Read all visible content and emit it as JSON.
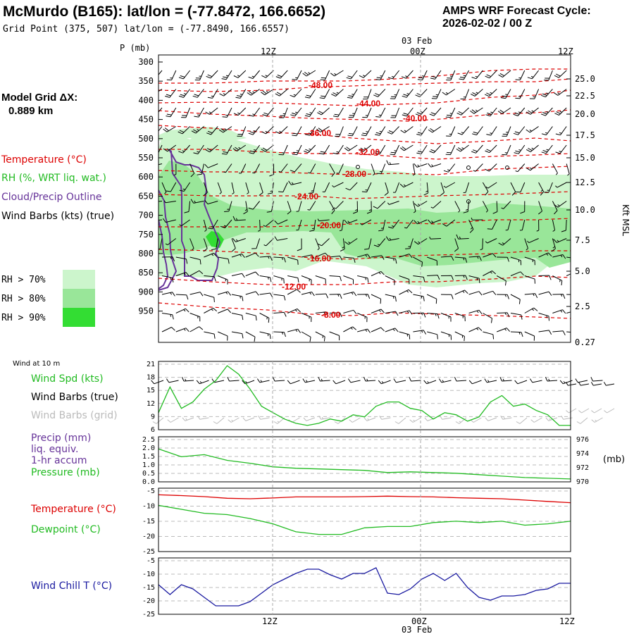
{
  "header": {
    "title": "McMurdo (B165):  lat/lon = (-77.8472, 166.6652)",
    "subtitle": "Grid Point (375, 507) lat/lon = (-77.8490, 166.6557)",
    "cycle_label": "AMPS WRF Forecast Cycle:",
    "cycle_value": "2026-02-02 / 00  Z"
  },
  "model_grid": {
    "label": "Model Grid ΔX:",
    "value": "0.889 km"
  },
  "colors": {
    "temperature": "#dd0000",
    "rh": "#22bb22",
    "cloud": "#663399",
    "wind": "#000000",
    "wind_grid": "#bbbbbb",
    "pressure": "#22bb22",
    "dewpoint": "#22bb22",
    "windchill": "#1a1aa0",
    "rh70": "#ccf5cc",
    "rh80": "#99e699",
    "rh90": "#33dd33"
  },
  "legend_main": {
    "temperature": "Temperature (°C)",
    "rh": "RH (%, WRT liq. wat.)",
    "cloud": "Cloud/Precip Outline",
    "wind": "Wind Barbs (kts) (true)"
  },
  "rh_legend": [
    "RH > 70%",
    "RH > 80%",
    "RH > 90%"
  ],
  "chart_data": [
    {
      "type": "area",
      "name": "cross-section",
      "ylabel": "P (mb)",
      "ylabel_right": "Kft MSL",
      "y_ticks": [
        "300",
        "350",
        "400",
        "450",
        "500",
        "550",
        "600",
        "650",
        "700",
        "750",
        "800",
        "850",
        "900",
        "950"
      ],
      "y_right_ticks": [
        "25.0",
        "22.5",
        "20.0",
        "17.5",
        "15.0",
        "12.5",
        "10.0",
        "7.5",
        "5.0",
        "2.5",
        "0.27"
      ],
      "x_ticks_top": [
        "12Z",
        "00Z",
        "12Z"
      ],
      "date_label_top": "03 Feb",
      "isotherm_labels": [
        "-48.00",
        "-44.00",
        "-40.00",
        "-36.00",
        "-32.00",
        "-28.00",
        "-24.00",
        "-20.00",
        "-16.00",
        "-12.00",
        "-8.00"
      ],
      "grid": true
    },
    {
      "type": "line",
      "name": "wind",
      "section_label": "Wind at 10 m",
      "labels": [
        "Wind Spd (kts)",
        "Wind Barbs (true)",
        "Wind Barbs (grid)"
      ],
      "y_ticks": [
        "21",
        "18",
        "15",
        "12",
        "9",
        "6"
      ],
      "ylim": [
        5,
        21
      ],
      "x": [
        0,
        1,
        2,
        3,
        4,
        5,
        6,
        7,
        8,
        9,
        10,
        11,
        12,
        13,
        14,
        15,
        16,
        17,
        18,
        19,
        20,
        21,
        22,
        23,
        24,
        25,
        26,
        27,
        28,
        29,
        30,
        31,
        32,
        33,
        34,
        35,
        36
      ],
      "series": [
        {
          "name": "Wind Spd (kts)",
          "values": [
            9,
            15,
            10,
            11.5,
            14.5,
            16.5,
            20,
            18,
            14.5,
            10.5,
            9,
            7.5,
            6.5,
            6,
            6.5,
            7.5,
            7,
            8.5,
            8,
            10.5,
            11.5,
            11.5,
            10,
            9.5,
            7.5,
            9,
            8.5,
            7,
            8,
            11.5,
            13,
            10.5,
            11,
            9.5,
            8.5,
            6,
            6
          ]
        }
      ],
      "grid": true
    },
    {
      "type": "line",
      "name": "precip-pressure",
      "labels": [
        "Precip (mm)",
        "liq. equiv.",
        "1-hr accum",
        "Pressure (mb)"
      ],
      "y_ticks": [
        "2.5",
        "2.0",
        "1.5",
        "1.0",
        "0.5",
        "0.0"
      ],
      "y_right_ticks": [
        "976",
        "974",
        "972",
        "970"
      ],
      "ylabel_right": "(mb)",
      "ylim": [
        969.7,
        976
      ],
      "x": [
        0,
        2,
        4,
        6,
        8,
        10,
        12,
        14,
        16,
        18,
        20,
        22,
        24,
        26,
        28,
        30,
        32,
        34,
        36
      ],
      "series": [
        {
          "name": "Pressure (mb)",
          "values": [
            974.3,
            973.2,
            973.5,
            972.7,
            972.3,
            971.8,
            971.6,
            971.5,
            971.4,
            971.3,
            971.0,
            971.1,
            971.0,
            970.9,
            970.7,
            970.5,
            970.3,
            970.2,
            970.1
          ]
        }
      ],
      "grid": true
    },
    {
      "type": "line",
      "name": "temperature-dewpoint",
      "labels": [
        "Temperature (°C)",
        "Dewpoint (°C)"
      ],
      "y_ticks": [
        "-5",
        "-10",
        "-15",
        "-20",
        "-25"
      ],
      "ylim": [
        -26,
        -2
      ],
      "x": [
        0,
        2,
        4,
        6,
        8,
        10,
        12,
        14,
        16,
        18,
        20,
        22,
        24,
        26,
        28,
        30,
        32,
        34,
        36
      ],
      "series": [
        {
          "name": "Temperature (°C)",
          "values": [
            -4.5,
            -4.8,
            -5.2,
            -5.8,
            -6,
            -5.7,
            -5.3,
            -5.3,
            -5.3,
            -5.2,
            -5.0,
            -5.2,
            -5.3,
            -5.6,
            -5.8,
            -6.0,
            -6.5,
            -7.0,
            -7.5
          ]
        },
        {
          "name": "Dewpoint (°C)",
          "values": [
            -8.5,
            -10,
            -11.5,
            -12,
            -13.5,
            -15.5,
            -18.5,
            -19.5,
            -19.5,
            -17,
            -16.5,
            -16.5,
            -15,
            -14.5,
            -15,
            -14.5,
            -16,
            -15.5,
            -14.5
          ]
        }
      ],
      "grid": true
    },
    {
      "type": "line",
      "name": "wind-chill",
      "labels": [
        "Wind Chill T (°C)"
      ],
      "y_ticks": [
        "-5",
        "-10",
        "-15",
        "-20",
        "-25"
      ],
      "ylim": [
        -25,
        -5
      ],
      "x": [
        0,
        1,
        2,
        3,
        4,
        5,
        6,
        7,
        8,
        9,
        10,
        11,
        12,
        13,
        14,
        15,
        16,
        17,
        18,
        19,
        20,
        21,
        22,
        23,
        24,
        25,
        26,
        27,
        28,
        29,
        30,
        31,
        32,
        33,
        34,
        35,
        36
      ],
      "series": [
        {
          "name": "Wind Chill T (°C)",
          "values": [
            -14.5,
            -18,
            -14.5,
            -16,
            -19,
            -22,
            -22,
            -22,
            -20.5,
            -17.5,
            -14.5,
            -12.5,
            -10.5,
            -9,
            -9,
            -11,
            -12.5,
            -10.5,
            -10.5,
            -8.5,
            -17.5,
            -18,
            -16,
            -12.5,
            -10.5,
            -13,
            -10.5,
            -15.5,
            -19,
            -20,
            -18.5,
            -18.5,
            -18,
            -16.5,
            -16,
            -14,
            -14
          ]
        }
      ],
      "grid": true
    }
  ],
  "bottom_axis": {
    "x_ticks": [
      "12Z",
      "00Z",
      "12Z"
    ],
    "date_label": "03 Feb"
  }
}
